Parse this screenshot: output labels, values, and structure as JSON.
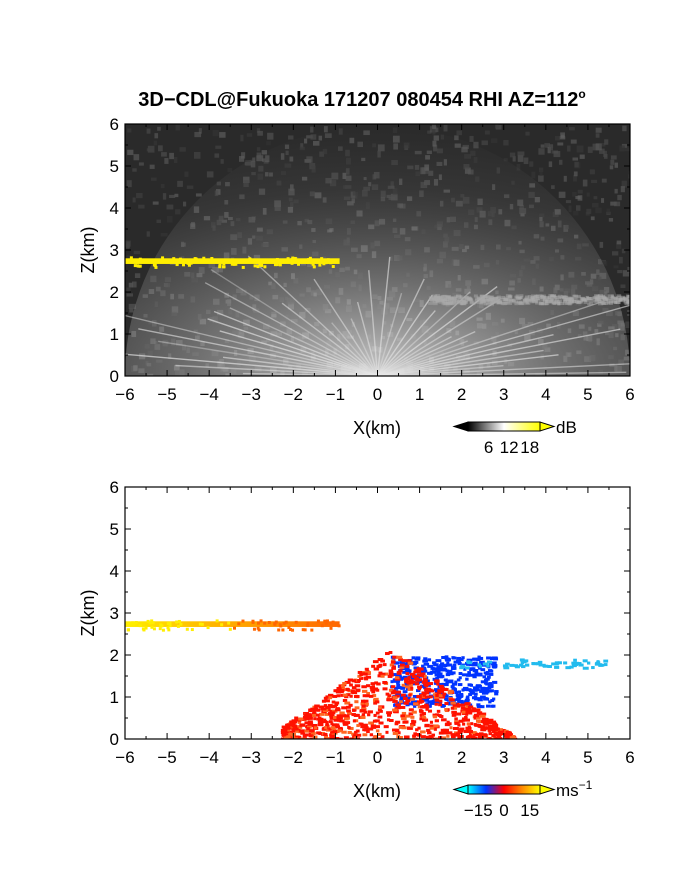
{
  "chart_data": [
    {
      "type": "heatmap",
      "title": "3D−CDL@Fukuoka 171207 080454 RHI AZ=112",
      "title_superscript": "o",
      "field": "intensity",
      "xlabel": "X(km)",
      "ylabel": "Z(km)",
      "xlim": [
        -6,
        6
      ],
      "ylim": [
        0,
        6
      ],
      "x_ticks": [
        "−6",
        "−5",
        "−4",
        "−3",
        "−2",
        "−1",
        "0",
        "1",
        "2",
        "3",
        "4",
        "5",
        "6"
      ],
      "y_ticks": [
        "0",
        "1",
        "2",
        "3",
        "4",
        "5",
        "6"
      ],
      "background_color": "#2a2a2a",
      "colorbar": {
        "unit": "dB",
        "ticks": [
          "6",
          "12",
          "18"
        ],
        "range": [
          0,
          21
        ],
        "colors": [
          "#000000",
          "#ffffff",
          "#ffff00"
        ]
      },
      "features": [
        {
          "name": "cloud layer",
          "color": "#ffee00",
          "x": [
            -6.0,
            -0.9
          ],
          "z": [
            2.62,
            2.85
          ]
        },
        {
          "name": "weak layer",
          "color": "#aaaaaa",
          "x": [
            1.2,
            6.0
          ],
          "z": [
            1.75,
            1.95
          ]
        }
      ]
    },
    {
      "type": "heatmap",
      "field": "radial velocity",
      "xlabel": "X(km)",
      "ylabel": "Z(km)",
      "xlim": [
        -6,
        6
      ],
      "ylim": [
        0,
        6
      ],
      "x_ticks": [
        "−6",
        "−5",
        "−4",
        "−3",
        "−2",
        "−1",
        "0",
        "1",
        "2",
        "3",
        "4",
        "5",
        "6"
      ],
      "y_ticks": [
        "0",
        "1",
        "2",
        "3",
        "4",
        "5",
        "6"
      ],
      "background_color": "#ffffff",
      "colorbar": {
        "unit": "ms",
        "unit_superscript": "−1",
        "ticks": [
          "−15",
          "0",
          "15"
        ],
        "range": [
          -21,
          21
        ],
        "colors": [
          "#00ffff",
          "#0033ff",
          "#ff0000",
          "#ff8800",
          "#ffff00"
        ]
      },
      "features": [
        {
          "name": "cloud layer",
          "color_from": "#ffee00",
          "color_to": "#ff6600",
          "x": [
            -6.0,
            -0.9
          ],
          "z": [
            2.62,
            2.85
          ]
        },
        {
          "name": "receding region",
          "color": "#0033ff",
          "x": [
            0.3,
            2.8
          ],
          "z": [
            0.8,
            2.0
          ]
        },
        {
          "name": "far layer",
          "color": "#22bbee",
          "x": [
            1.9,
            5.4
          ],
          "z": [
            1.72,
            1.92
          ]
        },
        {
          "name": "approaching region",
          "color": "#ff1100",
          "x": [
            -2.3,
            3.2
          ],
          "z": [
            0.0,
            2.2
          ]
        }
      ]
    }
  ]
}
